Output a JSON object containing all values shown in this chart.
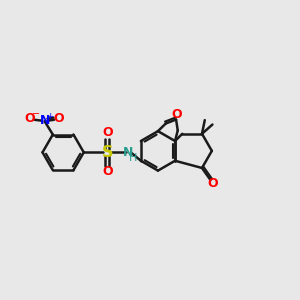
{
  "bg_color": "#e8e8e8",
  "bond_color": "#1a1a1a",
  "bond_width": 1.8,
  "figsize": [
    3.0,
    3.0
  ],
  "dpi": 100,
  "xlim": [
    0,
    10
  ],
  "ylim": [
    0,
    10
  ],
  "nitro_N_color": "blue",
  "nitro_O_color": "red",
  "S_color": "#c8c800",
  "NH_color": "#2a9d8f",
  "furan_O_color": "red",
  "ketone_O_color": "red"
}
